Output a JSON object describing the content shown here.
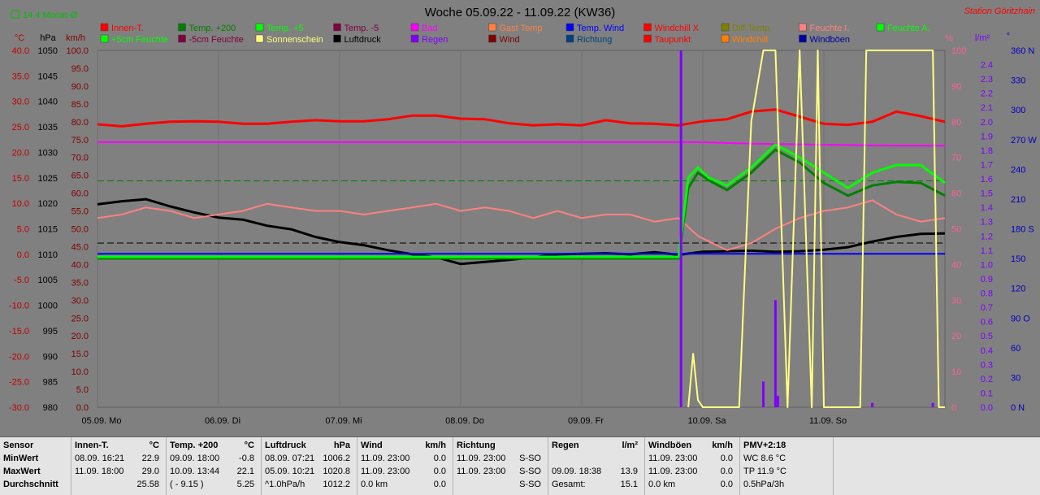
{
  "chart_data": {
    "type": "line",
    "title": "Woche 05.09.22 - 11.09.22 (KW36)",
    "station": "Station Göritzhain",
    "corner_label": "14.4 Monat-Ø",
    "legend": [
      {
        "name": "Innen-T.",
        "color": "#ff0000"
      },
      {
        "name": "Temp. +200",
        "color": "#008000"
      },
      {
        "name": "Temp. +5",
        "color": "#00ff00"
      },
      {
        "name": "Temp. -5",
        "color": "#800040"
      },
      {
        "name": "Bad",
        "color": "#ff00ff"
      },
      {
        "name": "Gast Temp",
        "color": "#ff8040"
      },
      {
        "name": "Temp. Wind",
        "color": "#0000ff"
      },
      {
        "name": "Windchill X",
        "color": "#ff0000"
      },
      {
        "name": "Diff Temp.",
        "color": "#808000"
      },
      {
        "name": "Feuchte I.",
        "color": "#ff8080"
      },
      {
        "name": "Feuchte A.",
        "color": "#00ff00"
      },
      {
        "name": "+5cm Feuchte",
        "color": "#00ff00"
      },
      {
        "name": "-5cm Feuchte",
        "color": "#800040"
      },
      {
        "name": "Sonnenschein",
        "color": "#ffff80"
      },
      {
        "name": "Luftdruck",
        "color": "#000000"
      },
      {
        "name": "Regen",
        "color": "#8000ff"
      },
      {
        "name": "Wind",
        "color": "#800000"
      },
      {
        "name": "Richtung",
        "color": "#004080"
      },
      {
        "name": "Taupunkt",
        "color": "#ff0000"
      },
      {
        "name": "Windchill",
        "color": "#ff8000"
      },
      {
        "name": "Windböen",
        "color": "#0000a0"
      }
    ],
    "axes": {
      "temp": {
        "unit": "°C",
        "color": "#c00000",
        "range": [
          -30,
          40
        ],
        "ticks": [
          "40.0",
          "35.0",
          "30.0",
          "25.0",
          "20.0",
          "15.0",
          "10.0",
          "5.0",
          "0.0",
          "-5.0",
          "-10.0",
          "-15.0",
          "-20.0",
          "-25.0",
          "-30.0"
        ]
      },
      "pressure": {
        "unit": "hPa",
        "color": "#000000",
        "range": [
          980,
          1050
        ],
        "ticks": [
          "1050",
          "1045",
          "1040",
          "1035",
          "1030",
          "1025",
          "1020",
          "1015",
          "1010",
          "1005",
          "1000",
          "995",
          "990",
          "985",
          "980"
        ]
      },
      "wind": {
        "unit": "km/h",
        "color": "#800000",
        "range": [
          0,
          100
        ],
        "ticks": [
          "100.0",
          "95.0",
          "90.0",
          "85.0",
          "80.0",
          "75.0",
          "70.0",
          "65.0",
          "60.0",
          "55.0",
          "50.0",
          "45.0",
          "40.0",
          "35.0",
          "30.0",
          "25.0",
          "20.0",
          "15.0",
          "10.0",
          "5.0",
          "0.0"
        ]
      },
      "humidity": {
        "unit": "%",
        "color": "#ff6090",
        "range": [
          0,
          100
        ],
        "ticks": [
          "100",
          "90",
          "80",
          "70",
          "60",
          "50",
          "40",
          "30",
          "20",
          "10",
          "0"
        ]
      },
      "rain": {
        "unit": "l/m²",
        "color": "#8000ff",
        "range": [
          0,
          2.5
        ],
        "ticks": [
          "2.4",
          "2.3",
          "2.2",
          "2.1",
          "2.0",
          "1.9",
          "1.8",
          "1.7",
          "1.6",
          "1.5",
          "1.4",
          "1.3",
          "1.2",
          "1.1",
          "1.0",
          "0.9",
          "0.8",
          "0.7",
          "0.6",
          "0.5",
          "0.4",
          "0.3",
          "0.2",
          "0.1",
          "0.0"
        ]
      },
      "direction": {
        "unit": "°",
        "color": "#0000c0",
        "range": [
          0,
          360
        ],
        "ticks": [
          "360 N",
          "330",
          "300",
          "270 W",
          "240",
          "210",
          "180 S",
          "150",
          "120",
          "90 O",
          "60",
          "30",
          "0 N"
        ]
      }
    },
    "x_days": [
      "05.09. Mo",
      "06.09. Di",
      "07.09. Mi",
      "08.09. Do",
      "09.09. Fr",
      "10.09. Sa",
      "11.09. So"
    ],
    "x_range": [
      0,
      7
    ],
    "ref_lines": [
      {
        "name": "14.4 Monat-Ø",
        "axis": "temp",
        "y": 14.4,
        "color": "#008000"
      },
      {
        "name": "Luftdruck Mittel",
        "axis": "pressure",
        "y": 1012.2,
        "color": "#000000"
      }
    ],
    "series": [
      {
        "name": "Innen-T.",
        "axis": "temp",
        "color": "#ff0000",
        "x": [
          0,
          0.2,
          0.4,
          0.6,
          0.8,
          1.0,
          1.2,
          1.4,
          1.6,
          1.8,
          2.0,
          2.2,
          2.4,
          2.6,
          2.8,
          3.0,
          3.2,
          3.4,
          3.6,
          3.8,
          4.0,
          4.2,
          4.4,
          4.6,
          4.8,
          5.0,
          5.2,
          5.4,
          5.6,
          5.8,
          6.0,
          6.2,
          6.4,
          6.6,
          6.8,
          7.0
        ],
        "y": [
          25.5,
          25.1,
          25.6,
          26.0,
          26.1,
          26.0,
          25.6,
          25.6,
          26.0,
          26.3,
          26.1,
          26.1,
          26.5,
          27.2,
          27.2,
          26.6,
          26.5,
          25.7,
          25.3,
          25.5,
          25.3,
          26.3,
          25.7,
          25.6,
          25.3,
          26.1,
          26.5,
          28.0,
          28.4,
          27.0,
          25.6,
          25.4,
          26.0,
          28.0,
          27.1,
          26.0
        ]
      },
      {
        "name": "Luftdruck",
        "axis": "pressure",
        "color": "#000000",
        "x": [
          0,
          0.2,
          0.4,
          0.6,
          0.8,
          1.0,
          1.2,
          1.4,
          1.6,
          1.8,
          2.0,
          2.2,
          2.4,
          2.6,
          2.8,
          3.0,
          3.2,
          3.4,
          3.6,
          3.8,
          4.0,
          4.2,
          4.4,
          4.6,
          4.8,
          5.0,
          5.2,
          5.4,
          5.6,
          5.8,
          6.0,
          6.2,
          6.4,
          6.6,
          6.8,
          7.0
        ],
        "y": [
          1019.8,
          1020.4,
          1020.8,
          1019.4,
          1018.2,
          1017.2,
          1016.8,
          1015.6,
          1014.9,
          1013.4,
          1012.4,
          1011.8,
          1010.8,
          1010.0,
          1009.4,
          1008.1,
          1008.5,
          1008.9,
          1009.4,
          1010.0,
          1010.1,
          1010.2,
          1010.0,
          1010.4,
          1009.9,
          1010.5,
          1010.6,
          1010.7,
          1010.5,
          1010.6,
          1010.9,
          1011.4,
          1012.5,
          1013.4,
          1014.0,
          1014.1
        ]
      },
      {
        "name": "Feuchte I.",
        "axis": "humidity",
        "color": "#ff8080",
        "x": [
          0,
          0.2,
          0.4,
          0.6,
          0.8,
          1.0,
          1.2,
          1.4,
          1.6,
          1.8,
          2.0,
          2.2,
          2.4,
          2.6,
          2.8,
          3.0,
          3.2,
          3.4,
          3.6,
          3.8,
          4.0,
          4.2,
          4.4,
          4.6,
          4.8,
          4.96,
          5.2,
          5.4,
          5.6,
          5.8,
          6.0,
          6.2,
          6.4,
          6.6,
          6.8,
          7.0
        ],
        "y": [
          53,
          54,
          56,
          55,
          53,
          54,
          55,
          57,
          56,
          55,
          55,
          54,
          55,
          56,
          57,
          55,
          56,
          55,
          53,
          55,
          53,
          54,
          54,
          52,
          53,
          48,
          44,
          46,
          50,
          53,
          55,
          56,
          58,
          54,
          52,
          53
        ]
      },
      {
        "name": "Bad",
        "axis": "temp",
        "color": "#ff00ff",
        "x": [
          0,
          4.88,
          4.96,
          5.4,
          6.0,
          6.6,
          7.0
        ],
        "y": [
          22.0,
          22.0,
          22.0,
          21.7,
          21.5,
          21.3,
          21.3
        ]
      },
      {
        "name": "Temp. Wind",
        "axis": "temp",
        "color": "#0000ff",
        "x": [
          0,
          7.0
        ],
        "y": [
          0.1,
          0.1
        ]
      },
      {
        "name": "Temp. +200",
        "axis": "temp",
        "color": "#008000",
        "x": [
          0,
          4.8,
          4.88,
          4.96,
          5.05,
          5.2,
          5.4,
          5.6,
          5.8,
          6.0,
          6.2,
          6.4,
          6.6,
          6.8,
          7.0
        ],
        "y": [
          -0.8,
          -0.8,
          13.0,
          16.0,
          14.5,
          12.6,
          16.0,
          20.5,
          18.0,
          14.0,
          11.5,
          13.5,
          14.2,
          14.0,
          11.5
        ]
      },
      {
        "name": "Temp. +5",
        "axis": "temp",
        "color": "#00ff00",
        "x": [
          0,
          4.8,
          4.88,
          4.96,
          5.05,
          5.2,
          5.4,
          5.6,
          5.8,
          6.0,
          6.2,
          6.4,
          6.6,
          6.8,
          7.0
        ],
        "y": [
          -0.5,
          -0.5,
          15.0,
          17.0,
          15.0,
          13.5,
          17.0,
          21.5,
          19.0,
          16.0,
          13.0,
          16.0,
          17.5,
          17.5,
          14.0
        ]
      },
      {
        "name": "Sonnenschein",
        "axis": "wind",
        "color": "#ffff80",
        "x": [
          4.88,
          4.92,
          4.96,
          5.0,
          5.3,
          5.4,
          5.5,
          5.6,
          5.7,
          5.8,
          5.9,
          5.95,
          6.0,
          6.3,
          6.35,
          6.4,
          6.9,
          6.95,
          7.0
        ],
        "y": [
          0,
          15,
          2,
          0,
          0,
          80,
          100,
          100,
          0,
          100,
          0,
          100,
          0,
          0,
          100,
          100,
          100,
          0,
          0
        ]
      },
      {
        "name": "Regen",
        "axis": "rain",
        "color": "#8000ff",
        "x": [
          4.82,
          4.84,
          5.5,
          5.6,
          5.62,
          6.4,
          6.9
        ],
        "y": [
          2.5,
          0.0,
          0.18,
          0.75,
          0.08,
          0.03,
          0.03
        ]
      }
    ]
  },
  "stats": {
    "rows": [
      "Sensor",
      "MinWert",
      "MaxWert",
      "Durchschnitt"
    ],
    "columns": [
      {
        "title": "Innen-T.",
        "unit": "°C",
        "min": "08.09.  16:21",
        "min_v": "22.9",
        "max": "11.09.  18:00",
        "max_v": "29.0",
        "avg": "",
        "avg_v": "25.58"
      },
      {
        "title": "Temp. +200",
        "unit": "°C",
        "min": "09.09.  18:00",
        "min_v": "-0.8",
        "max": "10.09.  13:44",
        "max_v": "22.1",
        "avg": "( - 9.15 )",
        "avg_v": "5.25"
      },
      {
        "title": "Luftdruck",
        "unit": "hPa",
        "min": "08.09.  07:21",
        "min_v": "1006.2",
        "max": "05.09.  10:21",
        "max_v": "1020.8",
        "avg": "^1.0hPa/h",
        "avg_v": "1012.2"
      },
      {
        "title": "Wind",
        "unit": "km/h",
        "min": "11.09.  23:00",
        "min_v": "0.0",
        "max": "11.09.  23:00",
        "max_v": "0.0",
        "avg": "0.0 km",
        "avg_v": "0.0"
      },
      {
        "title": "Richtung",
        "unit": "",
        "min": "11.09.  23:00",
        "min_v": "S-SO",
        "max": "11.09.  23:00",
        "max_v": "S-SO",
        "avg": "",
        "avg_v": "S-SO"
      },
      {
        "title": "Regen",
        "unit": "l/m²",
        "min": "",
        "min_v": "",
        "max": "09.09.  18:38",
        "max_v": "13.9",
        "avg": "Gesamt:",
        "avg_v": "15.1"
      },
      {
        "title": "Windböen",
        "unit": "km/h",
        "min": "11.09.  23:00",
        "min_v": "0.0",
        "max": "11.09.  23:00",
        "max_v": "0.0",
        "avg": "0.0 km",
        "avg_v": "0.0"
      },
      {
        "title": "PMV+2:18",
        "unit": "",
        "min": "WC 8.6 °C",
        "min_v": "",
        "max": "TP 11.9 °C",
        "max_v": "",
        "avg": "0.5hPa/3h",
        "avg_v": ""
      }
    ]
  }
}
